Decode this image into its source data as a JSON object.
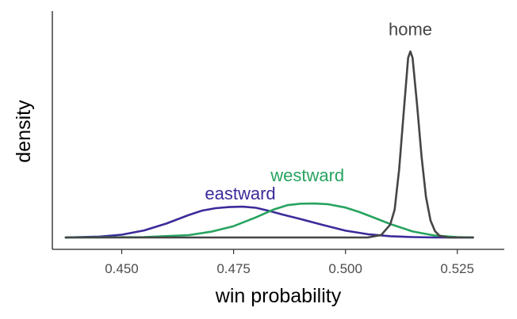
{
  "chart_data": {
    "type": "line",
    "xlabel": "win probability",
    "ylabel": "density",
    "xlim": [
      0.4345,
      0.5355
    ],
    "ylim": [
      0,
      1.0
    ],
    "x_ticks": [
      "0.450",
      "0.475",
      "0.500",
      "0.525"
    ],
    "x_tick_values": [
      0.45,
      0.475,
      0.5,
      0.525
    ],
    "y_ticks_shown": false,
    "grid": false,
    "legend": "none",
    "series": [
      {
        "name": "eastward",
        "color": "#3b2b9a",
        "x": [
          0.4375,
          0.445,
          0.45,
          0.455,
          0.46,
          0.465,
          0.468,
          0.471,
          0.474,
          0.477,
          0.48,
          0.483,
          0.486,
          0.49,
          0.495,
          0.5,
          0.505,
          0.51,
          0.515,
          0.52,
          0.5285
        ],
        "y": [
          0.0,
          0.004,
          0.013,
          0.033,
          0.065,
          0.105,
          0.126,
          0.137,
          0.142,
          0.144,
          0.139,
          0.124,
          0.107,
          0.086,
          0.058,
          0.032,
          0.015,
          0.006,
          0.002,
          0.0,
          0.0
        ]
      },
      {
        "name": "westward",
        "color": "#27a35f",
        "x": [
          0.4375,
          0.455,
          0.465,
          0.47,
          0.475,
          0.48,
          0.484,
          0.487,
          0.49,
          0.493,
          0.496,
          0.5,
          0.503,
          0.506,
          0.51,
          0.515,
          0.52,
          0.525,
          0.5285
        ],
        "y": [
          0.0,
          0.002,
          0.011,
          0.027,
          0.053,
          0.094,
          0.131,
          0.151,
          0.158,
          0.159,
          0.156,
          0.14,
          0.12,
          0.096,
          0.063,
          0.028,
          0.009,
          0.002,
          0.0
        ]
      },
      {
        "name": "home",
        "color": "#454545",
        "x": [
          0.4375,
          0.505,
          0.508,
          0.51,
          0.511,
          0.512,
          0.513,
          0.514,
          0.5145,
          0.515,
          0.516,
          0.517,
          0.518,
          0.519,
          0.52,
          0.521,
          0.523,
          0.5285
        ],
        "y": [
          0.0,
          0.0,
          0.012,
          0.06,
          0.13,
          0.32,
          0.58,
          0.84,
          0.87,
          0.84,
          0.62,
          0.38,
          0.19,
          0.08,
          0.03,
          0.008,
          0.0,
          0.0
        ]
      }
    ],
    "annotations": [
      {
        "text": "eastward",
        "x": 0.4765,
        "y": 0.178,
        "color": "#3b2b9a"
      },
      {
        "text": "westward",
        "x": 0.4915,
        "y": 0.262,
        "color": "#27a35f"
      },
      {
        "text": "home",
        "x": 0.5145,
        "y": 0.945,
        "color": "#454545"
      }
    ]
  }
}
